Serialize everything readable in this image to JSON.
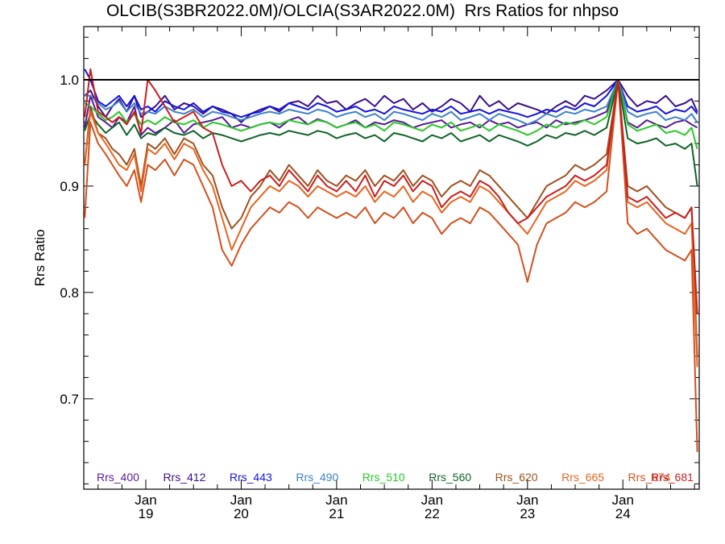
{
  "chart_data": {
    "type": "line",
    "title": "OLCIB(S3BR2022.0M)/OLCIA(S3AR2022.0M)  Rrs Ratios for nhpso",
    "ylabel": "Rrs Ratio",
    "xlabel": "",
    "ylim": [
      0.615,
      1.05
    ],
    "yticks": [
      {
        "value": 0.7,
        "label": "0.7"
      },
      {
        "value": 0.8,
        "label": "0.8"
      },
      {
        "value": 0.9,
        "label": "0.9"
      },
      {
        "value": 1.0,
        "label": "1.0"
      }
    ],
    "xlim": [
      18.35,
      24.8
    ],
    "xticks": [
      {
        "value": 19,
        "month": "Jan",
        "day": "19"
      },
      {
        "value": 20,
        "month": "Jan",
        "day": "20"
      },
      {
        "value": 21,
        "month": "Jan",
        "day": "21"
      },
      {
        "value": 22,
        "month": "Jan",
        "day": "22"
      },
      {
        "value": 23,
        "month": "Jan",
        "day": "23"
      },
      {
        "value": 24,
        "month": "Jan",
        "day": "24"
      }
    ],
    "reference_line": 1.0,
    "legend_placement": "bottom",
    "x": [
      18.36,
      18.42,
      18.5,
      18.58,
      18.65,
      18.72,
      18.8,
      18.88,
      18.95,
      19.02,
      19.1,
      19.2,
      19.3,
      19.4,
      19.5,
      19.6,
      19.7,
      19.8,
      19.9,
      20.0,
      20.1,
      20.2,
      20.3,
      20.4,
      20.5,
      20.6,
      20.7,
      20.8,
      20.9,
      21.0,
      21.1,
      21.2,
      21.3,
      21.4,
      21.5,
      21.6,
      21.7,
      21.8,
      21.9,
      22.0,
      22.1,
      22.2,
      22.3,
      22.4,
      22.5,
      22.6,
      22.7,
      22.8,
      22.9,
      23.0,
      23.1,
      23.2,
      23.3,
      23.4,
      23.5,
      23.6,
      23.7,
      23.83,
      23.95,
      24.05,
      24.15,
      24.25,
      24.35,
      24.45,
      24.55,
      24.65,
      24.72,
      24.78
    ],
    "series": [
      {
        "name": "Rrs_400",
        "color": "#5a1a96",
        "values": [
          0.955,
          0.985,
          0.965,
          0.96,
          0.955,
          0.965,
          0.96,
          0.975,
          0.948,
          0.955,
          0.95,
          0.955,
          0.962,
          0.95,
          0.958,
          0.96,
          0.962,
          0.965,
          0.955,
          0.958,
          0.955,
          0.958,
          0.96,
          0.955,
          0.962,
          0.965,
          0.958,
          0.963,
          0.96,
          0.955,
          0.958,
          0.962,
          0.955,
          0.96,
          0.958,
          0.962,
          0.96,
          0.955,
          0.958,
          0.96,
          0.962,
          0.955,
          0.958,
          0.96,
          0.955,
          0.962,
          0.958,
          0.96,
          0.955,
          0.958,
          0.96,
          0.955,
          0.962,
          0.958,
          0.96,
          0.962,
          0.965,
          0.97,
          1.0,
          0.96,
          0.955,
          0.962,
          0.958,
          0.955,
          0.96,
          0.962,
          0.958,
          0.955
        ]
      },
      {
        "name": "Rrs_412",
        "color": "#3c0f8c",
        "values": [
          0.985,
          0.99,
          0.975,
          0.965,
          0.975,
          0.982,
          0.97,
          0.985,
          0.965,
          0.97,
          0.975,
          0.985,
          0.972,
          0.978,
          0.975,
          0.968,
          0.975,
          0.972,
          0.968,
          0.96,
          0.968,
          0.972,
          0.975,
          0.97,
          0.978,
          0.98,
          0.975,
          0.985,
          0.978,
          0.98,
          0.972,
          0.978,
          0.982,
          0.975,
          0.985,
          0.978,
          0.982,
          0.972,
          0.978,
          0.97,
          0.975,
          0.982,
          0.978,
          0.97,
          0.985,
          0.975,
          0.98,
          0.972,
          0.978,
          0.975,
          0.972,
          0.968,
          0.975,
          0.98,
          0.975,
          0.985,
          0.982,
          0.99,
          1.0,
          0.985,
          0.975,
          0.98,
          0.978,
          0.985,
          0.975,
          0.978,
          0.982,
          0.97
        ]
      },
      {
        "name": "Rrs_443",
        "color": "#1414dc",
        "values": [
          1.01,
          1.0,
          0.98,
          0.975,
          0.98,
          0.985,
          0.975,
          0.985,
          0.972,
          0.975,
          0.97,
          0.98,
          0.975,
          0.972,
          0.978,
          0.97,
          0.975,
          0.97,
          0.968,
          0.965,
          0.968,
          0.97,
          0.975,
          0.972,
          0.978,
          0.975,
          0.972,
          0.978,
          0.975,
          0.97,
          0.972,
          0.975,
          0.97,
          0.972,
          0.968,
          0.975,
          0.972,
          0.97,
          0.968,
          0.972,
          0.97,
          0.975,
          0.968,
          0.97,
          0.972,
          0.968,
          0.972,
          0.97,
          0.968,
          0.965,
          0.968,
          0.972,
          0.97,
          0.975,
          0.972,
          0.978,
          0.975,
          0.985,
          1.0,
          0.975,
          0.97,
          0.972,
          0.975,
          0.968,
          0.972,
          0.97,
          0.975,
          0.968
        ]
      },
      {
        "name": "Rrs_490",
        "color": "#3c82c8",
        "values": [
          0.985,
          0.985,
          0.978,
          0.972,
          0.975,
          0.98,
          0.97,
          0.978,
          0.968,
          0.97,
          0.968,
          0.975,
          0.97,
          0.968,
          0.972,
          0.965,
          0.97,
          0.968,
          0.965,
          0.962,
          0.965,
          0.968,
          0.97,
          0.968,
          0.972,
          0.97,
          0.968,
          0.972,
          0.97,
          0.965,
          0.968,
          0.97,
          0.965,
          0.968,
          0.962,
          0.97,
          0.968,
          0.965,
          0.962,
          0.968,
          0.965,
          0.97,
          0.962,
          0.965,
          0.968,
          0.962,
          0.968,
          0.965,
          0.962,
          0.958,
          0.962,
          0.968,
          0.965,
          0.97,
          0.968,
          0.972,
          0.97,
          0.975,
          1.0,
          0.97,
          0.965,
          0.968,
          0.97,
          0.962,
          0.965,
          0.962,
          0.968,
          0.96
        ]
      },
      {
        "name": "Rrs_510",
        "color": "#28c828",
        "values": [
          0.978,
          0.975,
          0.968,
          0.962,
          0.965,
          0.97,
          0.96,
          0.968,
          0.958,
          0.962,
          0.958,
          0.965,
          0.96,
          0.958,
          0.962,
          0.955,
          0.96,
          0.958,
          0.955,
          0.952,
          0.955,
          0.958,
          0.96,
          0.958,
          0.962,
          0.96,
          0.958,
          0.962,
          0.96,
          0.955,
          0.958,
          0.96,
          0.955,
          0.958,
          0.952,
          0.96,
          0.958,
          0.955,
          0.952,
          0.958,
          0.955,
          0.96,
          0.952,
          0.955,
          0.958,
          0.952,
          0.958,
          0.955,
          0.952,
          0.948,
          0.952,
          0.958,
          0.955,
          0.96,
          0.958,
          0.962,
          0.958,
          0.965,
          1.0,
          0.958,
          0.952,
          0.955,
          0.958,
          0.95,
          0.952,
          0.948,
          0.955,
          0.935
        ]
      },
      {
        "name": "Rrs_560",
        "color": "#0f6428",
        "values": [
          0.952,
          0.968,
          0.958,
          0.95,
          0.955,
          0.96,
          0.948,
          0.958,
          0.945,
          0.95,
          0.948,
          0.955,
          0.95,
          0.948,
          0.952,
          0.945,
          0.95,
          0.948,
          0.945,
          0.942,
          0.945,
          0.948,
          0.95,
          0.948,
          0.952,
          0.95,
          0.948,
          0.952,
          0.95,
          0.945,
          0.948,
          0.95,
          0.945,
          0.948,
          0.942,
          0.95,
          0.948,
          0.945,
          0.942,
          0.948,
          0.945,
          0.95,
          0.942,
          0.945,
          0.948,
          0.942,
          0.948,
          0.945,
          0.942,
          0.938,
          0.942,
          0.948,
          0.945,
          0.95,
          0.948,
          0.952,
          0.948,
          0.955,
          1.0,
          0.945,
          0.94,
          0.942,
          0.945,
          0.938,
          0.94,
          0.935,
          0.94,
          0.9
        ]
      },
      {
        "name": "Rrs_620",
        "color": "#a0501e",
        "values": [
          0.92,
          0.975,
          0.95,
          0.945,
          0.935,
          0.93,
          0.92,
          0.935,
          0.9,
          0.94,
          0.935,
          0.945,
          0.93,
          0.945,
          0.94,
          0.92,
          0.91,
          0.88,
          0.86,
          0.87,
          0.89,
          0.9,
          0.915,
          0.905,
          0.92,
          0.91,
          0.9,
          0.915,
          0.905,
          0.9,
          0.91,
          0.905,
          0.915,
          0.9,
          0.91,
          0.905,
          0.915,
          0.9,
          0.91,
          0.905,
          0.89,
          0.9,
          0.905,
          0.9,
          0.915,
          0.91,
          0.9,
          0.89,
          0.88,
          0.87,
          0.885,
          0.9,
          0.905,
          0.91,
          0.92,
          0.915,
          0.92,
          0.93,
          1.0,
          0.9,
          0.895,
          0.9,
          0.89,
          0.88,
          0.875,
          0.87,
          0.88,
          0.74
        ]
      },
      {
        "name": "Rrs_665",
        "color": "#e6641e",
        "values": [
          0.92,
          0.97,
          0.95,
          0.94,
          0.93,
          0.92,
          0.915,
          0.93,
          0.895,
          0.935,
          0.93,
          0.94,
          0.925,
          0.94,
          0.935,
          0.915,
          0.9,
          0.87,
          0.84,
          0.86,
          0.88,
          0.89,
          0.9,
          0.895,
          0.905,
          0.9,
          0.89,
          0.9,
          0.895,
          0.89,
          0.895,
          0.89,
          0.9,
          0.885,
          0.895,
          0.89,
          0.9,
          0.885,
          0.895,
          0.89,
          0.875,
          0.885,
          0.89,
          0.885,
          0.9,
          0.895,
          0.885,
          0.875,
          0.865,
          0.855,
          0.87,
          0.885,
          0.89,
          0.895,
          0.905,
          0.9,
          0.905,
          0.915,
          1.0,
          0.885,
          0.88,
          0.885,
          0.875,
          0.865,
          0.86,
          0.855,
          0.865,
          0.73
        ]
      },
      {
        "name": "Rrs_674",
        "color": "#d2501e",
        "values": [
          0.87,
          0.96,
          0.94,
          0.93,
          0.92,
          0.91,
          0.9,
          0.915,
          0.885,
          0.92,
          0.915,
          0.925,
          0.91,
          0.925,
          0.92,
          0.9,
          0.88,
          0.84,
          0.825,
          0.845,
          0.86,
          0.87,
          0.88,
          0.875,
          0.885,
          0.88,
          0.87,
          0.88,
          0.875,
          0.87,
          0.875,
          0.87,
          0.88,
          0.865,
          0.875,
          0.87,
          0.88,
          0.865,
          0.875,
          0.87,
          0.855,
          0.865,
          0.87,
          0.865,
          0.88,
          0.875,
          0.865,
          0.855,
          0.845,
          0.81,
          0.845,
          0.865,
          0.87,
          0.875,
          0.885,
          0.88,
          0.885,
          0.895,
          1.0,
          0.865,
          0.855,
          0.86,
          0.85,
          0.84,
          0.835,
          0.83,
          0.84,
          0.65
        ]
      },
      {
        "name": "Rrs_681",
        "color": "#c81e1e",
        "values": [
          0.965,
          1.01,
          0.97,
          0.965,
          0.96,
          0.965,
          0.958,
          0.97,
          0.95,
          1.0,
          0.99,
          0.975,
          0.96,
          0.965,
          0.97,
          0.955,
          0.95,
          0.92,
          0.9,
          0.905,
          0.895,
          0.905,
          0.91,
          0.9,
          0.915,
          0.905,
          0.895,
          0.91,
          0.9,
          0.895,
          0.905,
          0.895,
          0.91,
          0.89,
          0.905,
          0.9,
          0.91,
          0.895,
          0.905,
          0.9,
          0.88,
          0.89,
          0.895,
          0.89,
          0.905,
          0.9,
          0.89,
          0.875,
          0.865,
          0.87,
          0.88,
          0.89,
          0.895,
          0.9,
          0.91,
          0.905,
          0.91,
          0.92,
          1.0,
          0.89,
          0.885,
          0.89,
          0.88,
          0.87,
          0.875,
          0.87,
          0.88,
          0.78
        ]
      }
    ]
  }
}
